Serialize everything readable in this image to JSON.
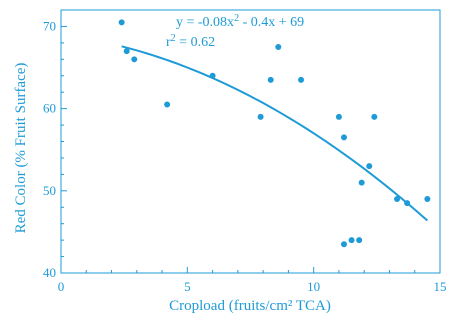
{
  "accent_color": "#1e9bd7",
  "chart_data": {
    "type": "scatter",
    "xlabel": "Cropload (fruits/cm² TCA)",
    "ylabel": "Red Color (% Fruit Surface)",
    "xlim": [
      0,
      15
    ],
    "ylim": [
      40,
      72
    ],
    "x_ticks": [
      0,
      5,
      10,
      15
    ],
    "x_tick_labels": [
      "0",
      "5",
      "10",
      "15"
    ],
    "y_ticks": [
      40,
      50,
      60,
      70
    ],
    "y_tick_labels": [
      "40",
      "50",
      "60",
      "70"
    ],
    "points": [
      {
        "x": 2.4,
        "y": 70.5
      },
      {
        "x": 2.6,
        "y": 67
      },
      {
        "x": 2.9,
        "y": 66
      },
      {
        "x": 4.2,
        "y": 60.5
      },
      {
        "x": 6.0,
        "y": 64
      },
      {
        "x": 7.9,
        "y": 59
      },
      {
        "x": 8.3,
        "y": 63.5
      },
      {
        "x": 8.6,
        "y": 67.5
      },
      {
        "x": 9.5,
        "y": 63.5
      },
      {
        "x": 11.0,
        "y": 59
      },
      {
        "x": 11.2,
        "y": 56.5
      },
      {
        "x": 11.2,
        "y": 43.5
      },
      {
        "x": 11.5,
        "y": 44
      },
      {
        "x": 11.8,
        "y": 44
      },
      {
        "x": 11.9,
        "y": 51
      },
      {
        "x": 12.2,
        "y": 53
      },
      {
        "x": 12.4,
        "y": 59
      },
      {
        "x": 13.3,
        "y": 49
      },
      {
        "x": 13.7,
        "y": 48.5
      },
      {
        "x": 14.5,
        "y": 49
      }
    ],
    "trendline": {
      "equation_prefix": "y = -0.08x",
      "equation_exp": "2",
      "equation_suffix": " - 0.4x + 69",
      "r2_prefix": "r",
      "r2_exp": "2",
      "r2_suffix": " = 0.62",
      "a": -0.08,
      "b": -0.4,
      "c": 69,
      "x_range": [
        2.4,
        14.5
      ]
    }
  }
}
